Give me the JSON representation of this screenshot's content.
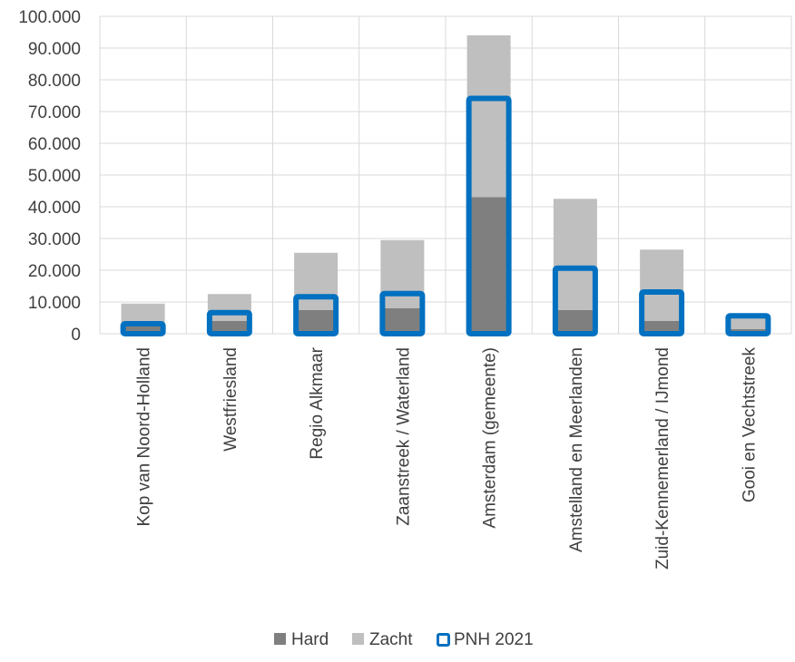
{
  "chart_data": {
    "type": "bar",
    "categories": [
      "Kop van Noord-Holland",
      "Westfriesland",
      "Regio Alkmaar",
      "Zaanstreek / Waterland",
      "Amsterdam (gemeente)",
      "Amstelland en Meerlanden",
      "Zuid-Kennemerland / IJmond",
      "Gooi en Vechtstreek"
    ],
    "series": [
      {
        "name": "Hard",
        "values": [
          3000,
          4000,
          7500,
          8000,
          43000,
          7500,
          4000,
          1500
        ],
        "color": "#7f7f7f",
        "stacked": true
      },
      {
        "name": "Zacht",
        "values": [
          6500,
          8500,
          18000,
          21500,
          51000,
          35000,
          22500,
          4500
        ],
        "color": "#bfbfbf",
        "stacked": true
      },
      {
        "name": "PNH 2021",
        "values": [
          4000,
          7500,
          12500,
          13500,
          75000,
          21500,
          14000,
          6500
        ],
        "color": "#0070c0",
        "style": "outline-bar"
      }
    ],
    "ylim": [
      0,
      100000
    ],
    "yticks": [
      "0",
      "10.000",
      "20.000",
      "30.000",
      "40.000",
      "50.000",
      "60.000",
      "70.000",
      "80.000",
      "90.000",
      "100.000"
    ],
    "grid": true,
    "legend_position": "bottom"
  }
}
